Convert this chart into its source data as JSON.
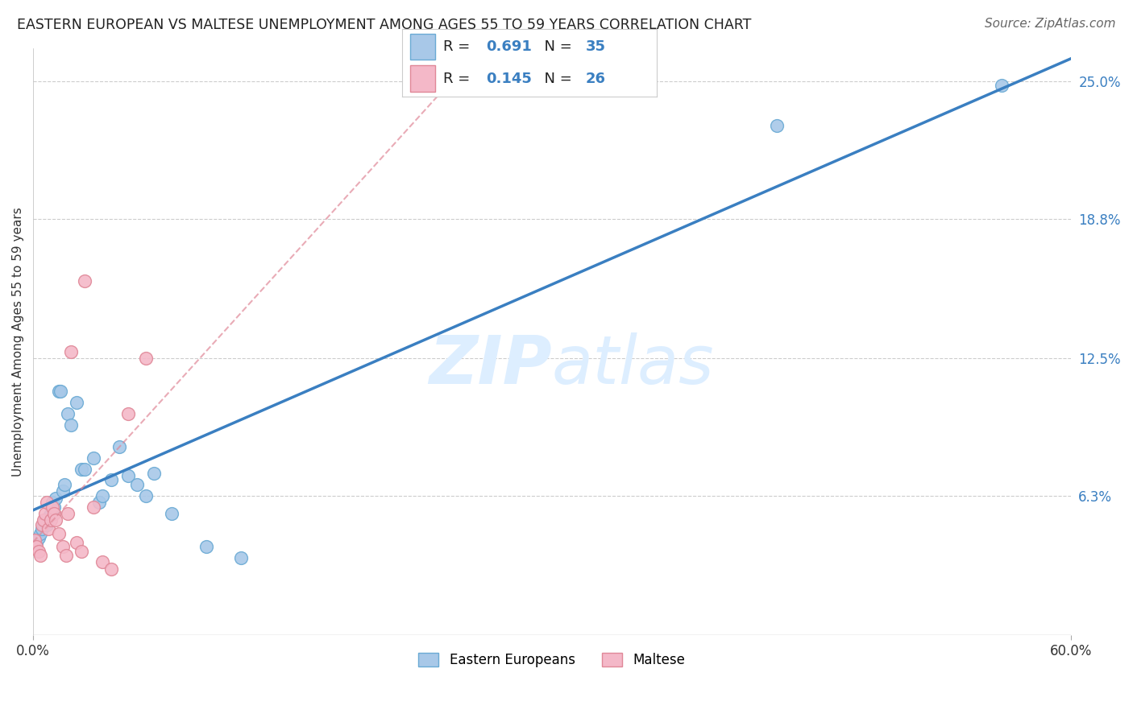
{
  "title": "EASTERN EUROPEAN VS MALTESE UNEMPLOYMENT AMONG AGES 55 TO 59 YEARS CORRELATION CHART",
  "source": "Source: ZipAtlas.com",
  "ylabel": "Unemployment Among Ages 55 to 59 years",
  "xlim": [
    0,
    0.6
  ],
  "ylim": [
    0,
    0.265
  ],
  "ytick_right_labels": [
    "6.3%",
    "12.5%",
    "18.8%",
    "25.0%"
  ],
  "ytick_right_values": [
    0.063,
    0.125,
    0.188,
    0.25
  ],
  "R_eastern": "0.691",
  "N_eastern": "35",
  "R_maltese": "0.145",
  "N_maltese": "26",
  "eastern_color": "#a8c8e8",
  "eastern_edge": "#6aaad4",
  "maltese_color": "#f4b8c8",
  "maltese_edge": "#e08898",
  "line_eastern_color": "#3a7fc1",
  "line_maltese_color": "#e08898",
  "watermark_color": "#ddeeff",
  "background_color": "#ffffff",
  "grid_color": "#cccccc",
  "eastern_x": [
    0.002,
    0.003,
    0.004,
    0.005,
    0.006,
    0.007,
    0.008,
    0.009,
    0.01,
    0.011,
    0.012,
    0.013,
    0.015,
    0.016,
    0.017,
    0.018,
    0.02,
    0.022,
    0.025,
    0.028,
    0.03,
    0.035,
    0.038,
    0.04,
    0.045,
    0.05,
    0.055,
    0.06,
    0.065,
    0.07,
    0.08,
    0.1,
    0.12,
    0.43,
    0.56
  ],
  "eastern_y": [
    0.042,
    0.044,
    0.046,
    0.048,
    0.05,
    0.052,
    0.05,
    0.053,
    0.055,
    0.06,
    0.058,
    0.062,
    0.11,
    0.11,
    0.065,
    0.068,
    0.1,
    0.095,
    0.105,
    0.075,
    0.075,
    0.08,
    0.06,
    0.063,
    0.07,
    0.085,
    0.072,
    0.068,
    0.063,
    0.073,
    0.055,
    0.04,
    0.035,
    0.23,
    0.248
  ],
  "maltese_x": [
    0.001,
    0.002,
    0.003,
    0.004,
    0.005,
    0.006,
    0.007,
    0.008,
    0.009,
    0.01,
    0.011,
    0.012,
    0.013,
    0.015,
    0.017,
    0.019,
    0.02,
    0.022,
    0.025,
    0.028,
    0.03,
    0.035,
    0.04,
    0.045,
    0.055,
    0.065
  ],
  "maltese_y": [
    0.043,
    0.04,
    0.038,
    0.036,
    0.05,
    0.052,
    0.055,
    0.06,
    0.048,
    0.052,
    0.058,
    0.055,
    0.052,
    0.046,
    0.04,
    0.036,
    0.055,
    0.128,
    0.042,
    0.038,
    0.16,
    0.058,
    0.033,
    0.03,
    0.1,
    0.125
  ]
}
